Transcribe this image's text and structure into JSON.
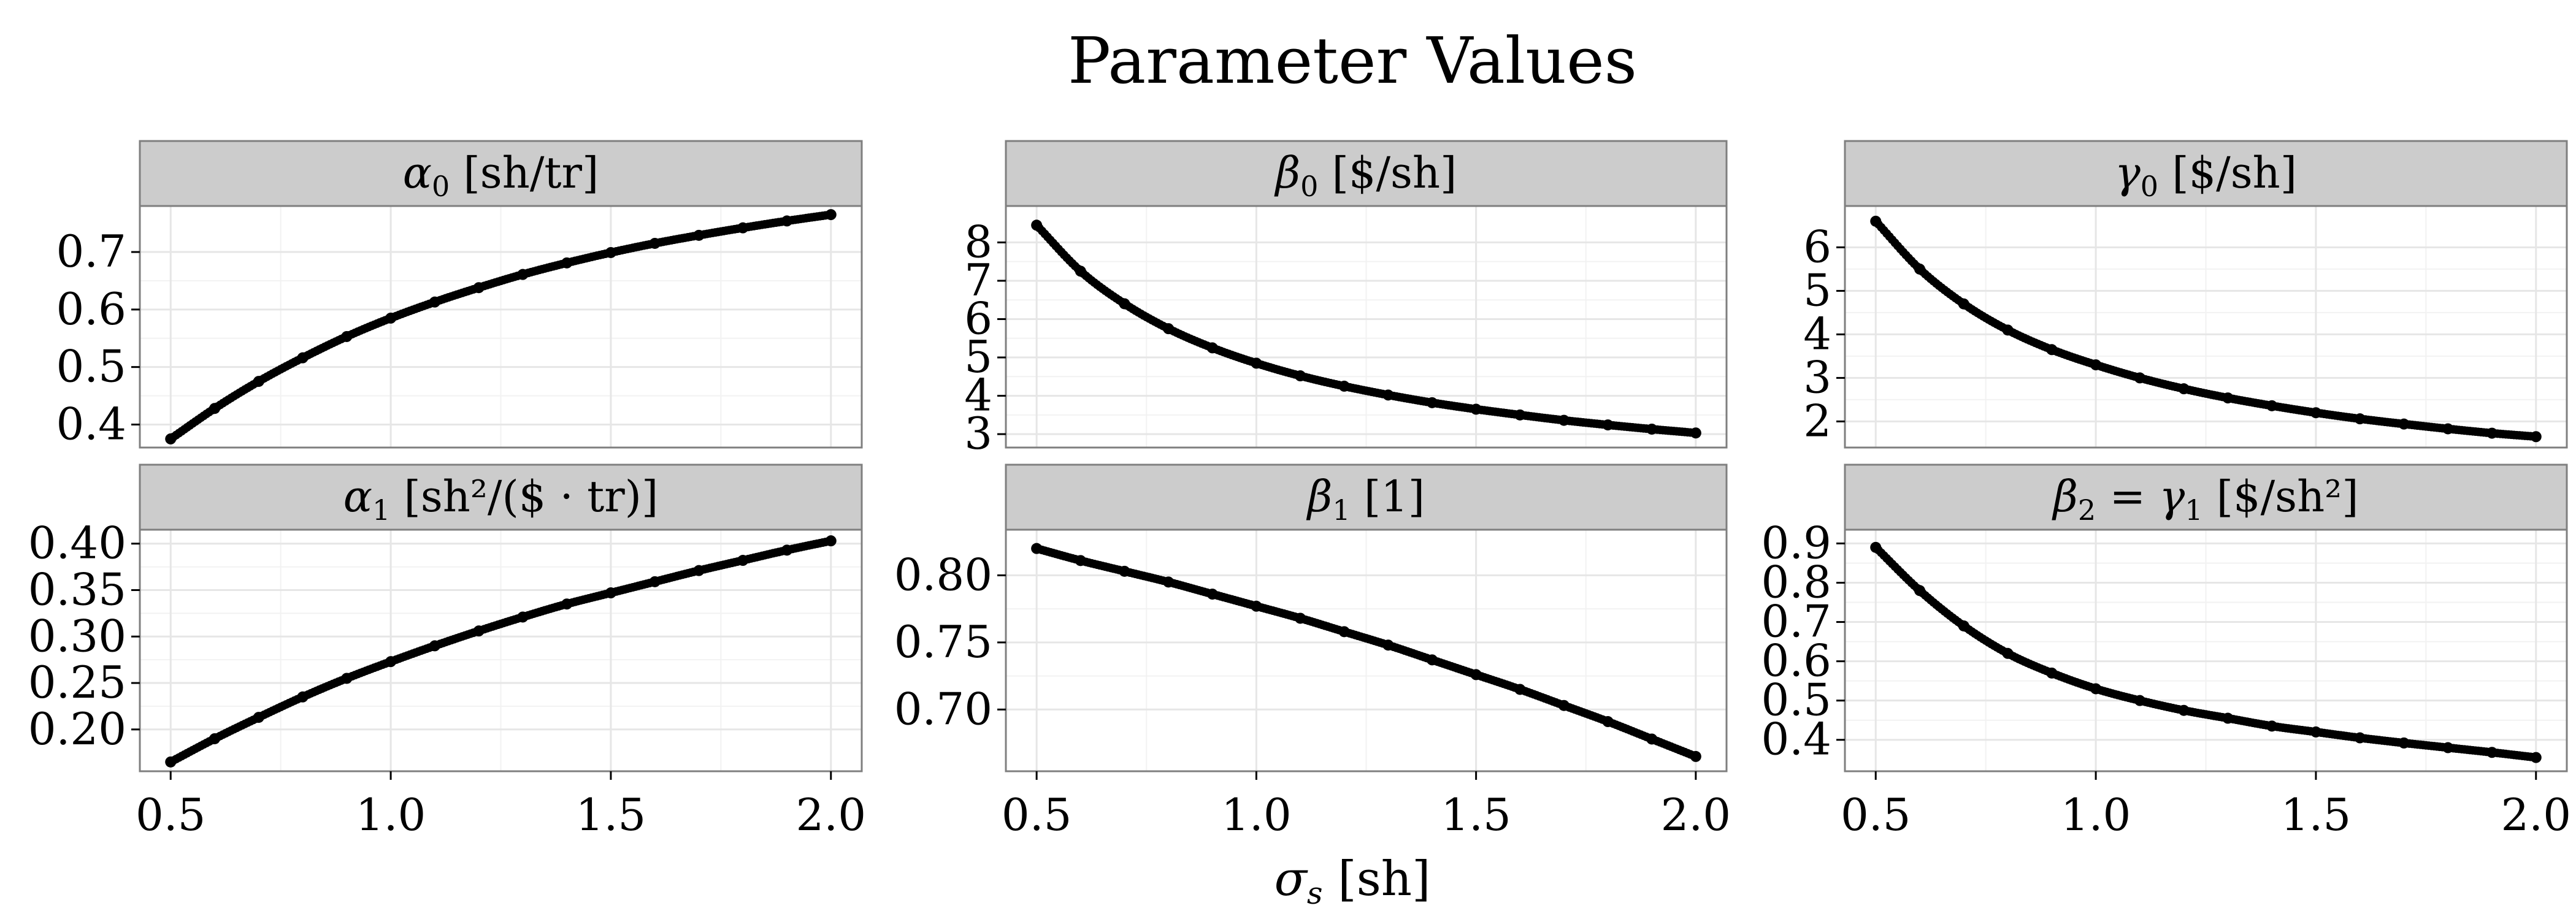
{
  "chart_data": {
    "title": "Parameter Values",
    "xlabel": "σs [sh]",
    "x_ticks": [
      0.5,
      1.0,
      1.5,
      2.0
    ],
    "x_tick_labels": [
      "0.5",
      "1.0",
      "1.5",
      "2.0"
    ],
    "xlim": [
      0.43,
      2.07
    ],
    "panels": [
      {
        "type": "scatter",
        "id": "alpha0",
        "label": "α0 [sh/tr]",
        "label_symbol": "α",
        "label_sub": "0",
        "label_unit": "[sh/tr]",
        "y_ticks": [
          0.4,
          0.5,
          0.6,
          0.7
        ],
        "y_tick_labels": [
          "0.4",
          "0.5",
          "0.6",
          "0.7"
        ],
        "ylim": [
          0.36,
          0.78
        ],
        "x": [
          0.5,
          0.6,
          0.7,
          0.8,
          0.9,
          1.0,
          1.1,
          1.2,
          1.3,
          1.4,
          1.5,
          1.6,
          1.7,
          1.8,
          1.9,
          2.0
        ],
        "y": [
          0.375,
          0.428,
          0.475,
          0.516,
          0.553,
          0.585,
          0.613,
          0.638,
          0.661,
          0.681,
          0.699,
          0.715,
          0.729,
          0.742,
          0.754,
          0.765
        ]
      },
      {
        "type": "scatter",
        "id": "beta0",
        "label": "β0 [$/sh]",
        "label_symbol": "β",
        "label_sub": "0",
        "label_unit": "[$/sh]",
        "y_ticks": [
          3,
          4,
          5,
          6,
          7,
          8
        ],
        "y_tick_labels": [
          "3",
          "4",
          "5",
          "6",
          "7",
          "8"
        ],
        "ylim": [
          2.65,
          8.95
        ],
        "x": [
          0.5,
          0.6,
          0.7,
          0.8,
          0.9,
          1.0,
          1.1,
          1.2,
          1.3,
          1.4,
          1.5,
          1.6,
          1.7,
          1.8,
          1.9,
          2.0
        ],
        "y": [
          8.45,
          7.25,
          6.4,
          5.75,
          5.25,
          4.85,
          4.52,
          4.25,
          4.02,
          3.82,
          3.65,
          3.5,
          3.36,
          3.24,
          3.13,
          3.03
        ]
      },
      {
        "type": "scatter",
        "id": "gamma0",
        "label": "γ0 [$/sh]",
        "label_symbol": "γ",
        "label_sub": "0",
        "label_unit": "[$/sh]",
        "y_ticks": [
          2,
          3,
          4,
          5,
          6
        ],
        "y_tick_labels": [
          "2",
          "3",
          "4",
          "5",
          "6"
        ],
        "ylim": [
          1.4,
          6.95
        ],
        "x": [
          0.5,
          0.6,
          0.7,
          0.8,
          0.9,
          1.0,
          1.1,
          1.2,
          1.3,
          1.4,
          1.5,
          1.6,
          1.7,
          1.8,
          1.9,
          2.0
        ],
        "y": [
          6.6,
          5.5,
          4.7,
          4.1,
          3.65,
          3.3,
          3.0,
          2.75,
          2.54,
          2.36,
          2.2,
          2.06,
          1.94,
          1.83,
          1.73,
          1.65
        ]
      },
      {
        "type": "scatter",
        "id": "alpha1",
        "label": "α1 [sh²/($ · tr)]",
        "label_symbol": "α",
        "label_sub": "1",
        "label_unit": "[sh²/($ · tr)]",
        "y_ticks": [
          0.2,
          0.25,
          0.3,
          0.35,
          0.4
        ],
        "y_tick_labels": [
          "0.20",
          "0.25",
          "0.30",
          "0.35",
          "0.40"
        ],
        "ylim": [
          0.155,
          0.415
        ],
        "x": [
          0.5,
          0.6,
          0.7,
          0.8,
          0.9,
          1.0,
          1.1,
          1.2,
          1.3,
          1.4,
          1.5,
          1.6,
          1.7,
          1.8,
          1.9,
          2.0
        ],
        "y": [
          0.165,
          0.19,
          0.213,
          0.235,
          0.255,
          0.273,
          0.29,
          0.306,
          0.321,
          0.335,
          0.347,
          0.359,
          0.371,
          0.382,
          0.393,
          0.403
        ]
      },
      {
        "type": "scatter",
        "id": "beta1",
        "label": "β1 [1]",
        "label_symbol": "β",
        "label_sub": "1",
        "label_unit": "[1]",
        "y_ticks": [
          0.7,
          0.75,
          0.8
        ],
        "y_tick_labels": [
          "0.70",
          "0.75",
          "0.80"
        ],
        "ylim": [
          0.654,
          0.834
        ],
        "x": [
          0.5,
          0.6,
          0.7,
          0.8,
          0.9,
          1.0,
          1.1,
          1.2,
          1.3,
          1.4,
          1.5,
          1.6,
          1.7,
          1.8,
          1.9,
          2.0
        ],
        "y": [
          0.82,
          0.811,
          0.803,
          0.795,
          0.786,
          0.777,
          0.768,
          0.758,
          0.748,
          0.737,
          0.726,
          0.715,
          0.703,
          0.691,
          0.678,
          0.665
        ]
      },
      {
        "type": "scatter",
        "id": "beta2gamma1",
        "label": "β2 = γ1 [$/sh²]",
        "label_symbol": "β",
        "label_sub": "2",
        "label_eq": " = ",
        "label_symbol2": "γ",
        "label_sub2": "1",
        "label_unit": "[$/sh²]",
        "y_ticks": [
          0.4,
          0.5,
          0.6,
          0.7,
          0.8,
          0.9
        ],
        "y_tick_labels": [
          "0.4",
          "0.5",
          "0.6",
          "0.7",
          "0.8",
          "0.9"
        ],
        "ylim": [
          0.32,
          0.935
        ],
        "x": [
          0.5,
          0.6,
          0.7,
          0.8,
          0.9,
          1.0,
          1.1,
          1.2,
          1.3,
          1.4,
          1.5,
          1.6,
          1.7,
          1.8,
          1.9,
          2.0
        ],
        "y": [
          0.89,
          0.78,
          0.69,
          0.62,
          0.57,
          0.53,
          0.5,
          0.475,
          0.455,
          0.435,
          0.42,
          0.405,
          0.392,
          0.38,
          0.368,
          0.355
        ]
      }
    ]
  }
}
